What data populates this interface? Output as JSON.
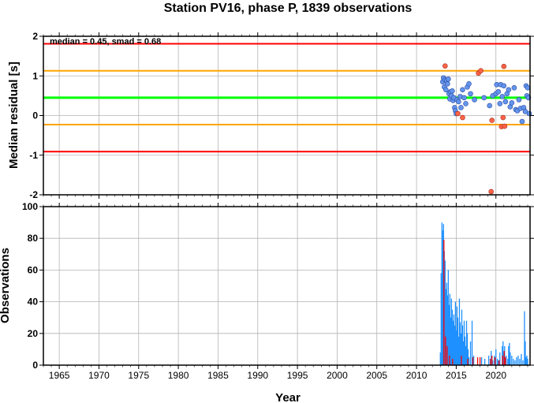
{
  "title": "Station PV16, phase P, 1839 observations",
  "annotation": "median = 0.45, smad = 0.68",
  "xlabel": "Year",
  "colors": {
    "red_line": "#ff0000",
    "orange_line": "#ffa500",
    "green_line": "#00ff00",
    "point_ok": "#6495ed",
    "point_out": "#ff6347",
    "bar_ok": "#1e90ff",
    "bar_out": "#ff0000",
    "grid": "#b4b4b4"
  },
  "chart_data": [
    {
      "type": "scatter",
      "ylabel": "Median residual [s]",
      "xlim": [
        1963,
        2024.3
      ],
      "ylim": [
        -2,
        2
      ],
      "x_ticks": [
        "1965",
        "1970",
        "1975",
        "1980",
        "1985",
        "1990",
        "1995",
        "2000",
        "2005",
        "2010",
        "2015",
        "2020"
      ],
      "y_ticks": [
        "-2",
        "-1",
        "0",
        "1",
        "2"
      ],
      "grid": true,
      "hlines": [
        {
          "y": 1.81,
          "color": "red"
        },
        {
          "y": 1.13,
          "color": "orange"
        },
        {
          "y": 0.45,
          "color": "green"
        },
        {
          "y": -0.23,
          "color": "orange"
        },
        {
          "y": -0.91,
          "color": "red"
        }
      ],
      "points_normal": [
        [
          2013.3,
          0.85
        ],
        [
          2013.4,
          0.95
        ],
        [
          2013.5,
          0.72
        ],
        [
          2013.6,
          0.9
        ],
        [
          2013.7,
          0.65
        ],
        [
          2013.8,
          0.88
        ],
        [
          2013.9,
          0.8
        ],
        [
          2014.0,
          0.92
        ],
        [
          2014.1,
          0.55
        ],
        [
          2014.2,
          0.42
        ],
        [
          2014.3,
          0.6
        ],
        [
          2014.4,
          0.5
        ],
        [
          2014.5,
          0.62
        ],
        [
          2014.6,
          0.38
        ],
        [
          2014.7,
          0.45
        ],
        [
          2014.8,
          0.2
        ],
        [
          2014.9,
          0.12
        ],
        [
          2015.0,
          0.05
        ],
        [
          2015.1,
          0.4
        ],
        [
          2015.3,
          0.35
        ],
        [
          2015.5,
          0.48
        ],
        [
          2015.6,
          0.2
        ],
        [
          2015.8,
          0.65
        ],
        [
          2016.0,
          0.45
        ],
        [
          2016.2,
          0.3
        ],
        [
          2016.4,
          0.72
        ],
        [
          2016.6,
          0.8
        ],
        [
          2016.8,
          0.55
        ],
        [
          2017.3,
          0.4
        ],
        [
          2018.5,
          0.45
        ],
        [
          2019.2,
          0.25
        ],
        [
          2019.6,
          0.5
        ],
        [
          2020.0,
          0.55
        ],
        [
          2020.1,
          0.78
        ],
        [
          2020.3,
          0.6
        ],
        [
          2020.5,
          0.3
        ],
        [
          2020.6,
          0.78
        ],
        [
          2020.8,
          0.48
        ],
        [
          2021.0,
          0.75
        ],
        [
          2021.2,
          0.35
        ],
        [
          2021.4,
          0.55
        ],
        [
          2021.6,
          0.65
        ],
        [
          2021.8,
          0.22
        ],
        [
          2022.0,
          0.32
        ],
        [
          2022.3,
          0.7
        ],
        [
          2022.5,
          0.15
        ],
        [
          2022.7,
          0.12
        ],
        [
          2022.9,
          0.4
        ],
        [
          2023.1,
          0.18
        ],
        [
          2023.3,
          -0.15
        ],
        [
          2023.5,
          0.2
        ],
        [
          2023.7,
          0.1
        ],
        [
          2023.8,
          0.75
        ],
        [
          2023.9,
          0.5
        ],
        [
          2024.0,
          0.7
        ],
        [
          2024.1,
          0.45
        ],
        [
          2024.2,
          0.05
        ]
      ],
      "points_outlier": [
        [
          2013.6,
          1.25
        ],
        [
          2015.2,
          0.05
        ],
        [
          2015.8,
          -0.05
        ],
        [
          2017.8,
          1.07
        ],
        [
          2018.1,
          1.13
        ],
        [
          2019.5,
          -0.12
        ],
        [
          2019.4,
          -1.92
        ],
        [
          2020.7,
          -0.28
        ],
        [
          2020.9,
          -0.05
        ],
        [
          2021.0,
          1.24
        ],
        [
          2021.1,
          -0.27
        ]
      ]
    },
    {
      "type": "bar",
      "ylabel": "Observations",
      "xlim": [
        1963,
        2024.3
      ],
      "ylim": [
        0,
        100
      ],
      "x_ticks": [
        "1965",
        "1970",
        "1975",
        "1980",
        "1985",
        "1990",
        "1995",
        "2000",
        "2005",
        "2010",
        "2015",
        "2020"
      ],
      "y_ticks": [
        "0",
        "20",
        "40",
        "60",
        "80",
        "100"
      ],
      "grid": true,
      "bars_normal": [
        [
          2013.0,
          8
        ],
        [
          2013.1,
          58
        ],
        [
          2013.2,
          90
        ],
        [
          2013.3,
          85
        ],
        [
          2013.35,
          62
        ],
        [
          2013.4,
          89
        ],
        [
          2013.5,
          72
        ],
        [
          2013.55,
          55
        ],
        [
          2013.6,
          66
        ],
        [
          2013.7,
          48
        ],
        [
          2013.8,
          52
        ],
        [
          2013.9,
          44
        ],
        [
          2014.0,
          60
        ],
        [
          2014.1,
          38
        ],
        [
          2014.2,
          45
        ],
        [
          2014.3,
          30
        ],
        [
          2014.4,
          42
        ],
        [
          2014.5,
          35
        ],
        [
          2014.6,
          28
        ],
        [
          2014.7,
          32
        ],
        [
          2014.8,
          25
        ],
        [
          2014.9,
          40
        ],
        [
          2015.0,
          22
        ],
        [
          2015.1,
          37
        ],
        [
          2015.2,
          30
        ],
        [
          2015.3,
          18
        ],
        [
          2015.4,
          42
        ],
        [
          2015.5,
          27
        ],
        [
          2015.6,
          20
        ],
        [
          2015.7,
          35
        ],
        [
          2015.8,
          25
        ],
        [
          2015.9,
          15
        ],
        [
          2016.0,
          28
        ],
        [
          2016.1,
          18
        ],
        [
          2016.2,
          12
        ],
        [
          2016.3,
          28
        ],
        [
          2016.4,
          20
        ],
        [
          2016.5,
          10
        ],
        [
          2016.6,
          5
        ],
        [
          2016.8,
          15
        ],
        [
          2017.0,
          28
        ],
        [
          2017.2,
          6
        ],
        [
          2018.2,
          5
        ],
        [
          2018.6,
          4
        ],
        [
          2019.1,
          6
        ],
        [
          2019.4,
          9
        ],
        [
          2019.6,
          3
        ],
        [
          2019.8,
          6
        ],
        [
          2020.0,
          10
        ],
        [
          2020.2,
          4
        ],
        [
          2020.3,
          3
        ],
        [
          2020.5,
          8
        ],
        [
          2020.8,
          12
        ],
        [
          2020.9,
          15
        ],
        [
          2021.0,
          8
        ],
        [
          2021.1,
          12
        ],
        [
          2021.3,
          6
        ],
        [
          2021.5,
          4
        ],
        [
          2021.6,
          12
        ],
        [
          2021.7,
          14
        ],
        [
          2021.8,
          8
        ],
        [
          2022.0,
          6
        ],
        [
          2022.2,
          4
        ],
        [
          2022.4,
          3
        ],
        [
          2022.6,
          5
        ],
        [
          2022.8,
          6
        ],
        [
          2023.0,
          4
        ],
        [
          2023.2,
          7
        ],
        [
          2023.4,
          3
        ],
        [
          2023.6,
          34
        ],
        [
          2023.7,
          15
        ],
        [
          2023.8,
          5
        ],
        [
          2023.9,
          6
        ],
        [
          2024.0,
          4
        ]
      ],
      "bars_outlier": [
        [
          2013.45,
          79
        ],
        [
          2013.65,
          18
        ],
        [
          2013.85,
          12
        ],
        [
          2014.15,
          6
        ],
        [
          2014.55,
          4
        ],
        [
          2015.65,
          6
        ],
        [
          2016.45,
          4
        ],
        [
          2017.1,
          5
        ],
        [
          2017.7,
          5
        ],
        [
          2018.0,
          5
        ],
        [
          2019.3,
          4
        ],
        [
          2019.5,
          6
        ],
        [
          2019.9,
          5
        ],
        [
          2020.4,
          3
        ],
        [
          2020.85,
          6
        ],
        [
          2021.05,
          9
        ],
        [
          2021.2,
          5
        ]
      ]
    }
  ]
}
